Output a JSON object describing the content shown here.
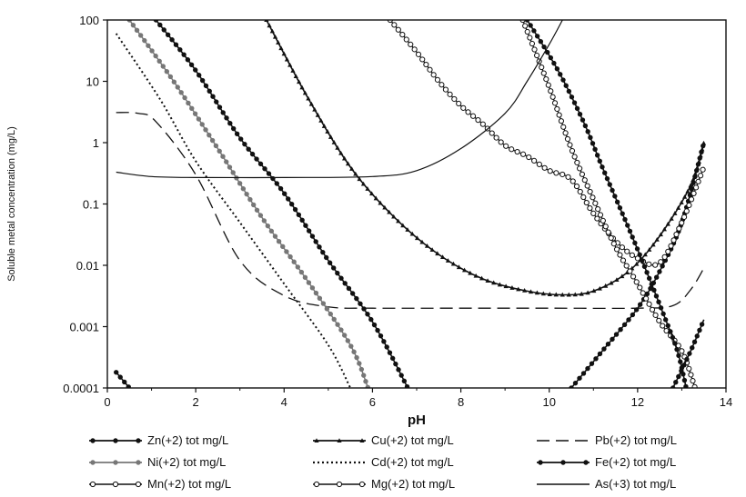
{
  "chart_data": {
    "type": "line",
    "xlabel": "pH",
    "ylabel": "Soluble metal concentration (mg/L)",
    "xlim": [
      0,
      14
    ],
    "ylim": [
      0.0001,
      100
    ],
    "y_scale": "log",
    "x_ticks": [
      "0",
      "2",
      "4",
      "6",
      "8",
      "10",
      "12",
      "14"
    ],
    "y_ticks": [
      "0.0001",
      "0.001",
      "0.01",
      "0.1",
      "1",
      "10",
      "100"
    ],
    "grid": false,
    "legend_position": "bottom",
    "series": [
      {
        "name": "Zn(+2) tot mg/L",
        "style": "solid-filled-markers",
        "color": "#111111",
        "points": [
          [
            1.1,
            100
          ],
          [
            2,
            15
          ],
          [
            3,
            1.2
          ],
          [
            4,
            0.15
          ],
          [
            5,
            0.012
          ],
          [
            6,
            0.0012
          ],
          [
            6.8,
            0.0001
          ]
        ]
      },
      {
        "name": "Cu(+2) tot mg/L",
        "style": "solid-triangle-markers",
        "color": "#111111",
        "points": [
          [
            3.6,
            100
          ],
          [
            4.5,
            6
          ],
          [
            5.5,
            0.4
          ],
          [
            6.5,
            0.06
          ],
          [
            7.5,
            0.015
          ],
          [
            8.5,
            0.006
          ],
          [
            9.5,
            0.0038
          ],
          [
            10.3,
            0.0033
          ],
          [
            11,
            0.0038
          ],
          [
            11.8,
            0.008
          ],
          [
            12.5,
            0.03
          ],
          [
            13.2,
            0.2
          ],
          [
            13.5,
            1
          ]
        ]
      },
      {
        "name": "Pb(+2) tot mg/L",
        "style": "dashed",
        "color": "#111111",
        "points": [
          [
            0.2,
            3.1
          ],
          [
            0.7,
            3.0
          ],
          [
            1.1,
            2.2
          ],
          [
            2,
            0.3
          ],
          [
            3,
            0.012
          ],
          [
            4,
            0.0032
          ],
          [
            5,
            0.0021
          ],
          [
            6,
            0.002
          ],
          [
            8,
            0.002
          ],
          [
            10,
            0.002
          ],
          [
            12,
            0.002
          ],
          [
            12.8,
            0.0022
          ],
          [
            13.2,
            0.004
          ],
          [
            13.5,
            0.009
          ]
        ]
      },
      {
        "name": "Ni(+2) tot mg/L",
        "style": "solid-gray-markers",
        "color": "#777777",
        "points": [
          [
            0.5,
            100
          ],
          [
            1.5,
            10
          ],
          [
            2.5,
            0.8
          ],
          [
            3.5,
            0.06
          ],
          [
            4.5,
            0.006
          ],
          [
            5.5,
            0.0005
          ],
          [
            5.9,
            0.0001
          ]
        ]
      },
      {
        "name": "Cd(+2) tot mg/L",
        "style": "dotted",
        "color": "#111111",
        "points": [
          [
            0.2,
            60
          ],
          [
            1.2,
            5
          ],
          [
            2,
            0.5
          ],
          [
            3,
            0.05
          ],
          [
            4,
            0.005
          ],
          [
            5,
            0.0005
          ],
          [
            5.5,
            0.0001
          ]
        ]
      },
      {
        "name": "Fe(+2) tot mg/L",
        "style": "solid-filled-markers",
        "color": "#111111",
        "points": [
          [
            10.5,
            0.0001
          ],
          [
            11.2,
            0.0004
          ],
          [
            12,
            0.002
          ],
          [
            12.5,
            0.008
          ],
          [
            13,
            0.05
          ],
          [
            13.5,
            1
          ]
        ]
      },
      {
        "name": "Mn(+2) tot mg/L",
        "style": "solid-open-markers",
        "color": "#111111",
        "points": [
          [
            6.4,
            100
          ],
          [
            7,
            30
          ],
          [
            7.5,
            10
          ],
          [
            8,
            4
          ],
          [
            8.5,
            2
          ],
          [
            9,
            0.9
          ],
          [
            9.5,
            0.6
          ],
          [
            10,
            0.35
          ],
          [
            10.5,
            0.25
          ],
          [
            11,
            0.07
          ],
          [
            11.5,
            0.025
          ],
          [
            12,
            0.013
          ],
          [
            12.5,
            0.011
          ],
          [
            13,
            0.05
          ],
          [
            13.5,
            0.4
          ]
        ]
      },
      {
        "name": "Mg(+2) tot mg/L",
        "style": "solid-open-markers",
        "color": "#111111",
        "points": [
          [
            9.4,
            100
          ],
          [
            10,
            8
          ],
          [
            10.5,
            0.8
          ],
          [
            11,
            0.12
          ],
          [
            11.5,
            0.02
          ],
          [
            12,
            0.005
          ],
          [
            12.5,
            0.0012
          ],
          [
            13,
            0.0004
          ],
          [
            13.3,
            0.0001
          ]
        ]
      },
      {
        "name": "As(+3) tot mg/L",
        "style": "solid-thin",
        "color": "#111111",
        "points": [
          [
            0.2,
            0.33
          ],
          [
            1,
            0.28
          ],
          [
            2,
            0.27
          ],
          [
            4,
            0.27
          ],
          [
            6,
            0.28
          ],
          [
            7,
            0.35
          ],
          [
            8,
            0.8
          ],
          [
            9,
            3
          ],
          [
            9.5,
            10
          ],
          [
            10,
            40
          ],
          [
            10.3,
            100
          ]
        ]
      },
      {
        "name": "",
        "style": "solid-filled-markers",
        "color": "#111111",
        "points": [
          [
            0.2,
            0.00018
          ],
          [
            0.5,
            0.0001
          ]
        ]
      },
      {
        "name": "",
        "style": "solid-filled-markers",
        "color": "#111111",
        "points": [
          [
            9.5,
            100
          ],
          [
            10.2,
            15
          ],
          [
            10.8,
            2
          ],
          [
            11.2,
            0.4
          ],
          [
            11.8,
            0.04
          ],
          [
            12.2,
            0.008
          ],
          [
            12.6,
            0.0015
          ],
          [
            12.9,
            0.0004
          ],
          [
            13.1,
            0.0001
          ]
        ]
      },
      {
        "name": "",
        "style": "solid-filled-markers",
        "color": "#111111",
        "points": [
          [
            12.8,
            0.0001
          ],
          [
            13.2,
            0.0004
          ],
          [
            13.5,
            0.0013
          ]
        ]
      }
    ]
  }
}
